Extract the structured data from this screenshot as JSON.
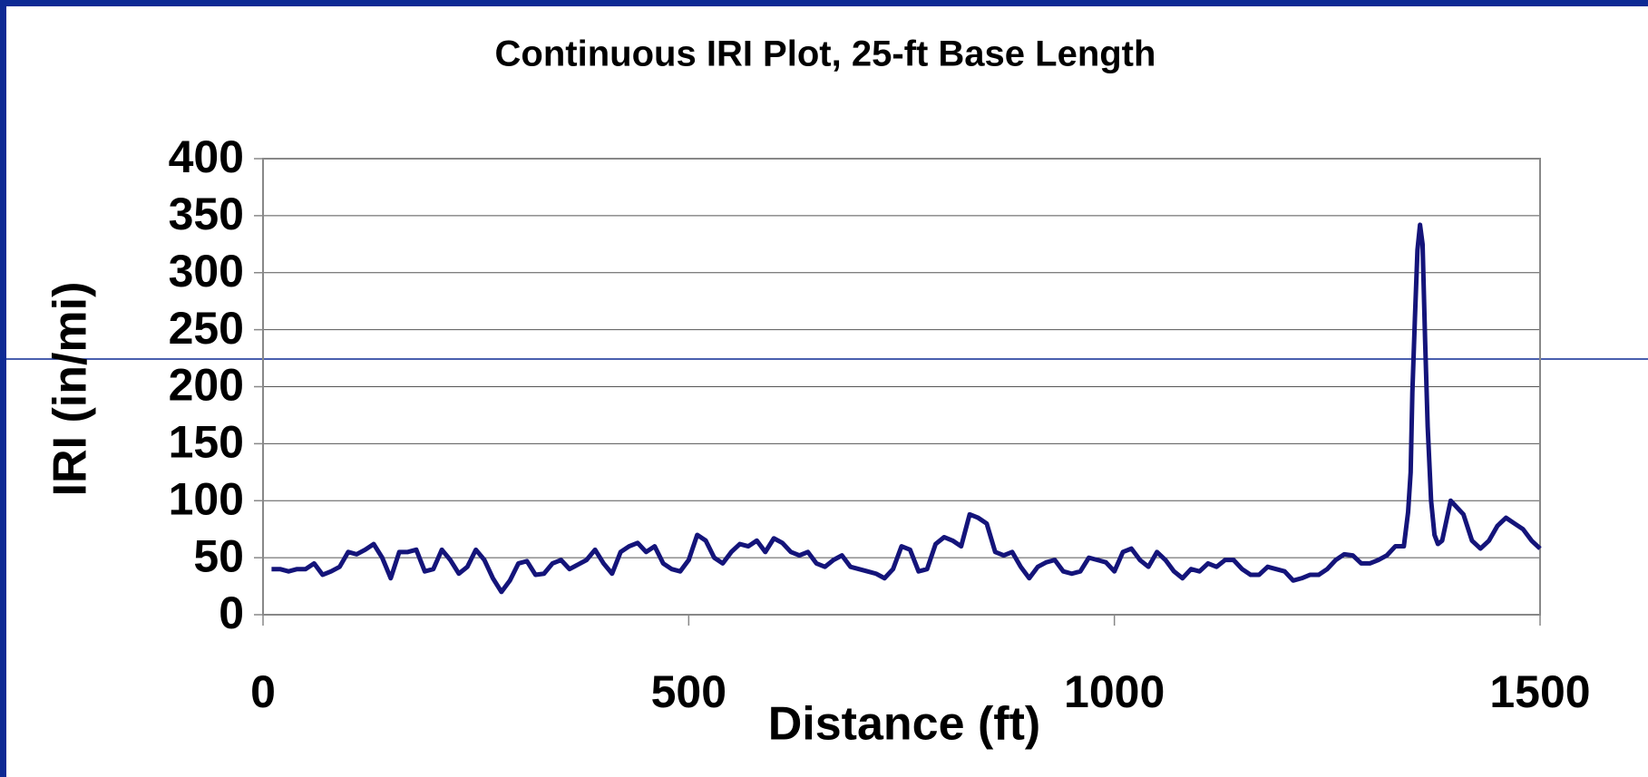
{
  "chart_data": {
    "type": "line",
    "title": "Continuous IRI Plot, 25-ft Base Length",
    "x_label": "Distance (ft)",
    "y_label": "IRI (in/mi)",
    "xlim": [
      0,
      1500
    ],
    "xticks": [
      0,
      500,
      1000,
      1500
    ],
    "ylim": [
      0,
      400
    ],
    "yticks": [
      0,
      50,
      100,
      150,
      200,
      250,
      300,
      350,
      400
    ],
    "grid": true,
    "series": [
      {
        "color": "#14147a",
        "x": [
          10,
          20,
          30,
          40,
          50,
          60,
          70,
          80,
          90,
          100,
          110,
          120,
          130,
          140,
          150,
          160,
          170,
          180,
          190,
          200,
          210,
          220,
          230,
          240,
          250,
          260,
          270,
          280,
          290,
          300,
          310,
          320,
          330,
          340,
          350,
          360,
          370,
          380,
          390,
          400,
          410,
          420,
          430,
          440,
          450,
          460,
          470,
          480,
          490,
          500,
          510,
          520,
          530,
          540,
          550,
          560,
          570,
          580,
          590,
          600,
          610,
          620,
          630,
          640,
          650,
          660,
          670,
          680,
          690,
          700,
          710,
          720,
          730,
          740,
          750,
          760,
          770,
          780,
          790,
          800,
          810,
          820,
          830,
          840,
          850,
          860,
          870,
          880,
          890,
          900,
          910,
          920,
          930,
          940,
          950,
          960,
          970,
          980,
          990,
          1000,
          1010,
          1020,
          1030,
          1040,
          1050,
          1060,
          1070,
          1080,
          1090,
          1100,
          1110,
          1120,
          1130,
          1140,
          1150,
          1160,
          1170,
          1180,
          1190,
          1200,
          1210,
          1220,
          1230,
          1240,
          1250,
          1260,
          1270,
          1280,
          1290,
          1300,
          1310,
          1320,
          1330,
          1340,
          1345,
          1348,
          1350,
          1353,
          1356,
          1359,
          1362,
          1365,
          1368,
          1372,
          1376,
          1380,
          1385,
          1395,
          1405,
          1410,
          1420,
          1430,
          1440,
          1450,
          1460,
          1470,
          1480,
          1490,
          1500
        ],
        "values": [
          40,
          40,
          38,
          40,
          40,
          45,
          35,
          38,
          42,
          55,
          53,
          57,
          62,
          50,
          32,
          55,
          55,
          57,
          38,
          40,
          57,
          48,
          36,
          42,
          57,
          48,
          32,
          20,
          30,
          45,
          47,
          35,
          36,
          45,
          48,
          40,
          44,
          48,
          57,
          45,
          36,
          55,
          60,
          63,
          55,
          60,
          45,
          40,
          38,
          48,
          70,
          65,
          50,
          45,
          55,
          62,
          60,
          65,
          55,
          67,
          63,
          55,
          52,
          55,
          45,
          42,
          48,
          52,
          42,
          40,
          38,
          36,
          32,
          40,
          60,
          57,
          38,
          40,
          62,
          68,
          65,
          60,
          88,
          85,
          80,
          55,
          52,
          55,
          42,
          32,
          42,
          46,
          48,
          38,
          36,
          38,
          50,
          48,
          46,
          38,
          55,
          58,
          48,
          42,
          55,
          48,
          38,
          32,
          40,
          38,
          45,
          42,
          48,
          48,
          40,
          35,
          35,
          42,
          40,
          38,
          30,
          32,
          35,
          35,
          40,
          48,
          53,
          52,
          45,
          45,
          48,
          52,
          60,
          60,
          90,
          125,
          195,
          260,
          320,
          342,
          325,
          240,
          165,
          100,
          70,
          62,
          65,
          100,
          92,
          88,
          65,
          58,
          65,
          78,
          85,
          80,
          75,
          65,
          58
        ]
      }
    ]
  }
}
